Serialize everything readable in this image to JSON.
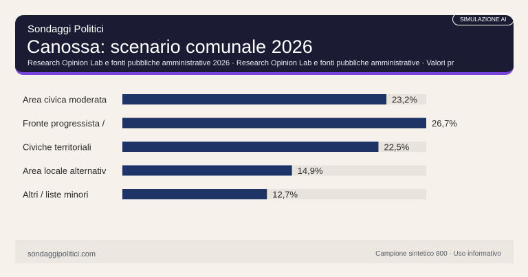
{
  "header": {
    "brand": "Sondaggi Politici",
    "title": "Canossa: scenario comunale 2026",
    "subtitle": "Research Opinion Lab e fonti pubbliche amministrative 2026 · Research Opinion Lab e fonti pubbliche amministrative · Valori pr",
    "badge": "SIMULAZIONE AI"
  },
  "colors": {
    "bar": "#1e3466",
    "track": "#e8e3dc",
    "accent": "#7a45d8",
    "header_bg": "#1b1c33"
  },
  "chart_data": {
    "type": "bar",
    "orientation": "horizontal",
    "categories": [
      "Area civica moderata",
      "Fronte progressista /",
      "Civiche territoriali",
      "Area locale alternativ",
      "Altri / liste minori"
    ],
    "values": [
      23.2,
      26.7,
      22.5,
      14.9,
      12.7
    ],
    "value_labels": [
      "23,2%",
      "26,7%",
      "22,5%",
      "14,9%",
      "12,7%"
    ],
    "xlim": [
      0,
      26.7
    ],
    "grid": false
  },
  "footer": {
    "site": "sondaggipolitici.com",
    "note": "Campione sintetico 800 · Uso informativo"
  }
}
